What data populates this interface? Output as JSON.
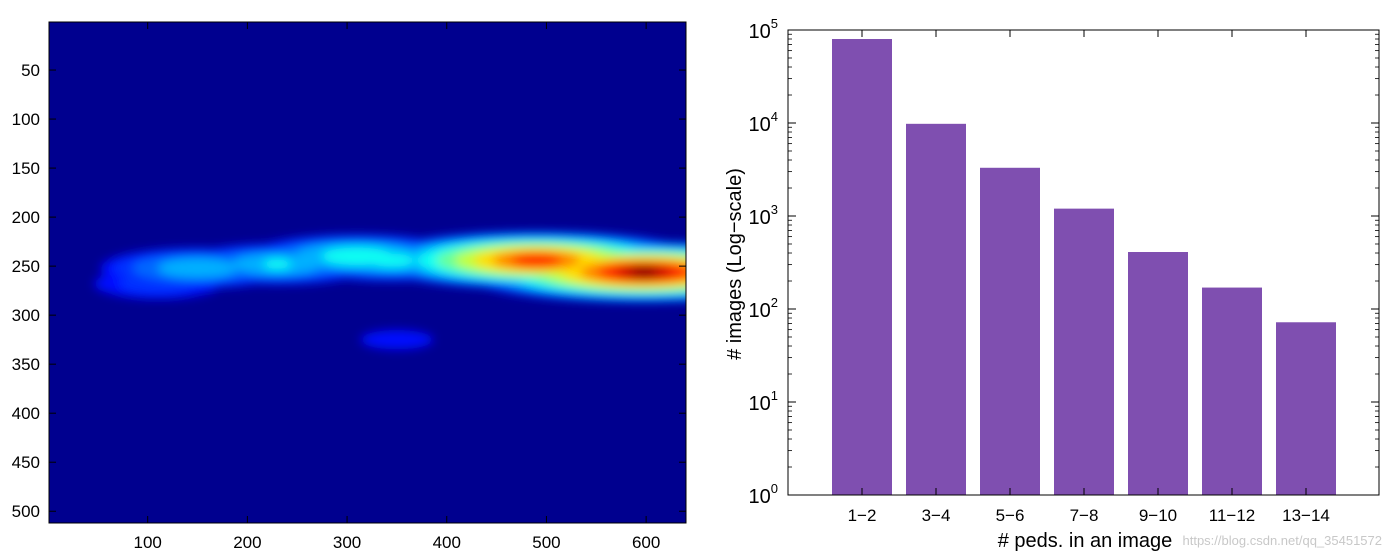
{
  "chart_data": [
    {
      "type": "heatmap",
      "title": "",
      "xlabel": "",
      "ylabel": "",
      "xlim": [
        1,
        640
      ],
      "ylim": [
        512,
        1
      ],
      "x_ticks": [
        100,
        200,
        300,
        400,
        500,
        600
      ],
      "y_ticks": [
        50,
        100,
        150,
        200,
        250,
        300,
        350,
        400,
        450,
        500
      ],
      "colormap": "jet",
      "background_color": "#00008f",
      "hotspots": [
        {
          "x": 110,
          "y": 268,
          "value": 0.12
        },
        {
          "x": 150,
          "y": 252,
          "value": 0.3
        },
        {
          "x": 230,
          "y": 248,
          "value": 0.32
        },
        {
          "x": 310,
          "y": 240,
          "value": 0.4
        },
        {
          "x": 345,
          "y": 244,
          "value": 0.35
        },
        {
          "x": 400,
          "y": 246,
          "value": 0.28
        },
        {
          "x": 490,
          "y": 244,
          "value": 0.88
        },
        {
          "x": 545,
          "y": 247,
          "value": 0.45
        },
        {
          "x": 598,
          "y": 256,
          "value": 1.0
        },
        {
          "x": 350,
          "y": 325,
          "value": 0.06
        }
      ]
    },
    {
      "type": "bar",
      "title": "",
      "xlabel": "# peds. in an image",
      "ylabel": "# images (Log−scale)",
      "yscale": "log",
      "ylim": [
        1,
        100000
      ],
      "y_ticks": [
        1,
        10,
        100,
        1000,
        10000,
        100000
      ],
      "y_tick_labels": [
        {
          "base": "10",
          "exp": "0"
        },
        {
          "base": "10",
          "exp": "1"
        },
        {
          "base": "10",
          "exp": "2"
        },
        {
          "base": "10",
          "exp": "3"
        },
        {
          "base": "10",
          "exp": "4"
        },
        {
          "base": "10",
          "exp": "5"
        }
      ],
      "categories": [
        "1−2",
        "3−4",
        "5−6",
        "7−8",
        "9−10",
        "11−12",
        "13−14"
      ],
      "values": [
        80000,
        9800,
        3300,
        1200,
        410,
        170,
        72
      ],
      "bar_color": "#7f4fb0",
      "grid": false,
      "legend": "none"
    }
  ],
  "watermark": "https://blog.csdn.net/qq_35451572"
}
